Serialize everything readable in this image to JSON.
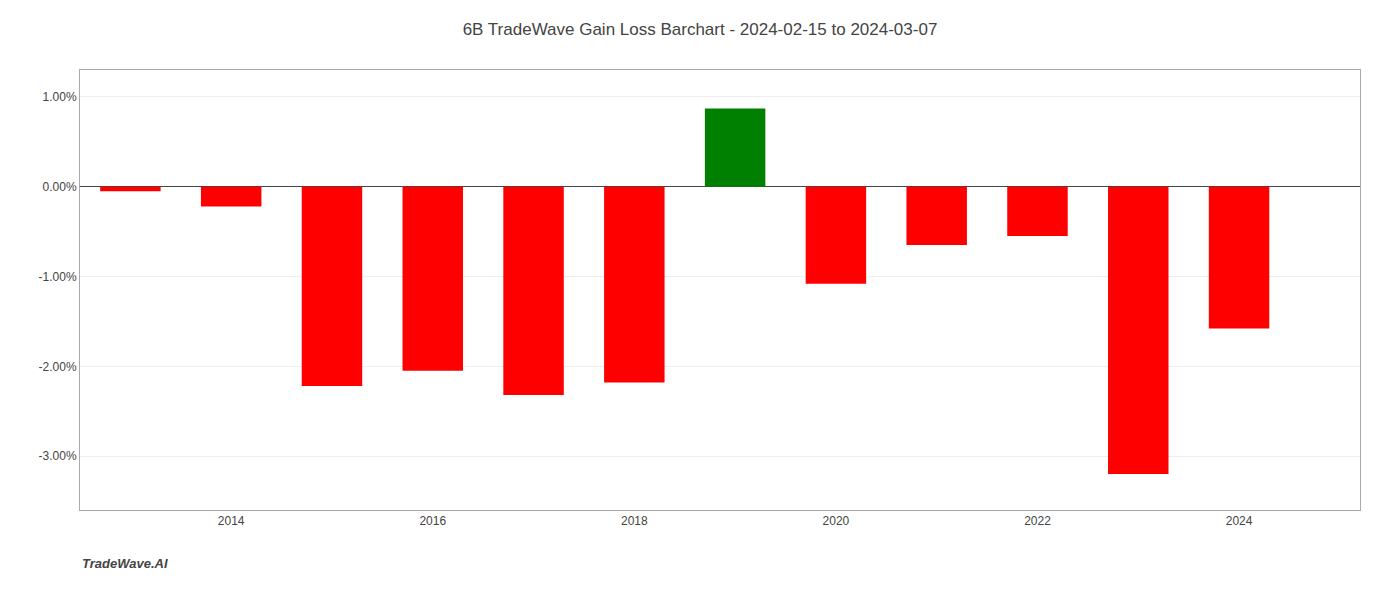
{
  "chart_data": {
    "type": "bar",
    "title": "6B TradeWave Gain Loss Barchart - 2024-02-15 to 2024-03-07",
    "annotations": [
      "TradeWave.AI"
    ],
    "x": [
      2013,
      2014,
      2015,
      2016,
      2017,
      2018,
      2019,
      2020,
      2021,
      2022,
      2023,
      2024
    ],
    "values": [
      -0.05,
      -0.22,
      -2.22,
      -2.05,
      -2.32,
      -2.18,
      0.87,
      -1.08,
      -0.65,
      -0.55,
      -3.2,
      -1.58
    ],
    "colors": [
      "#ff0000",
      "#ff0000",
      "#ff0000",
      "#ff0000",
      "#ff0000",
      "#ff0000",
      "#008000",
      "#ff0000",
      "#ff0000",
      "#ff0000",
      "#ff0000",
      "#ff0000"
    ],
    "xlim": [
      2012.5,
      2025.2
    ],
    "xticks": [
      2014,
      2016,
      2018,
      2020,
      2022,
      2024
    ],
    "ylim": [
      -3.6,
      1.3
    ],
    "yticks": [
      {
        "value": -3.0,
        "label": "-3.00%"
      },
      {
        "value": -2.0,
        "label": "-2.00%"
      },
      {
        "value": -1.0,
        "label": "-1.00%"
      },
      {
        "value": 0.0,
        "label": "0.00%"
      },
      {
        "value": 1.0,
        "label": "1.00%"
      }
    ],
    "grid": true
  }
}
